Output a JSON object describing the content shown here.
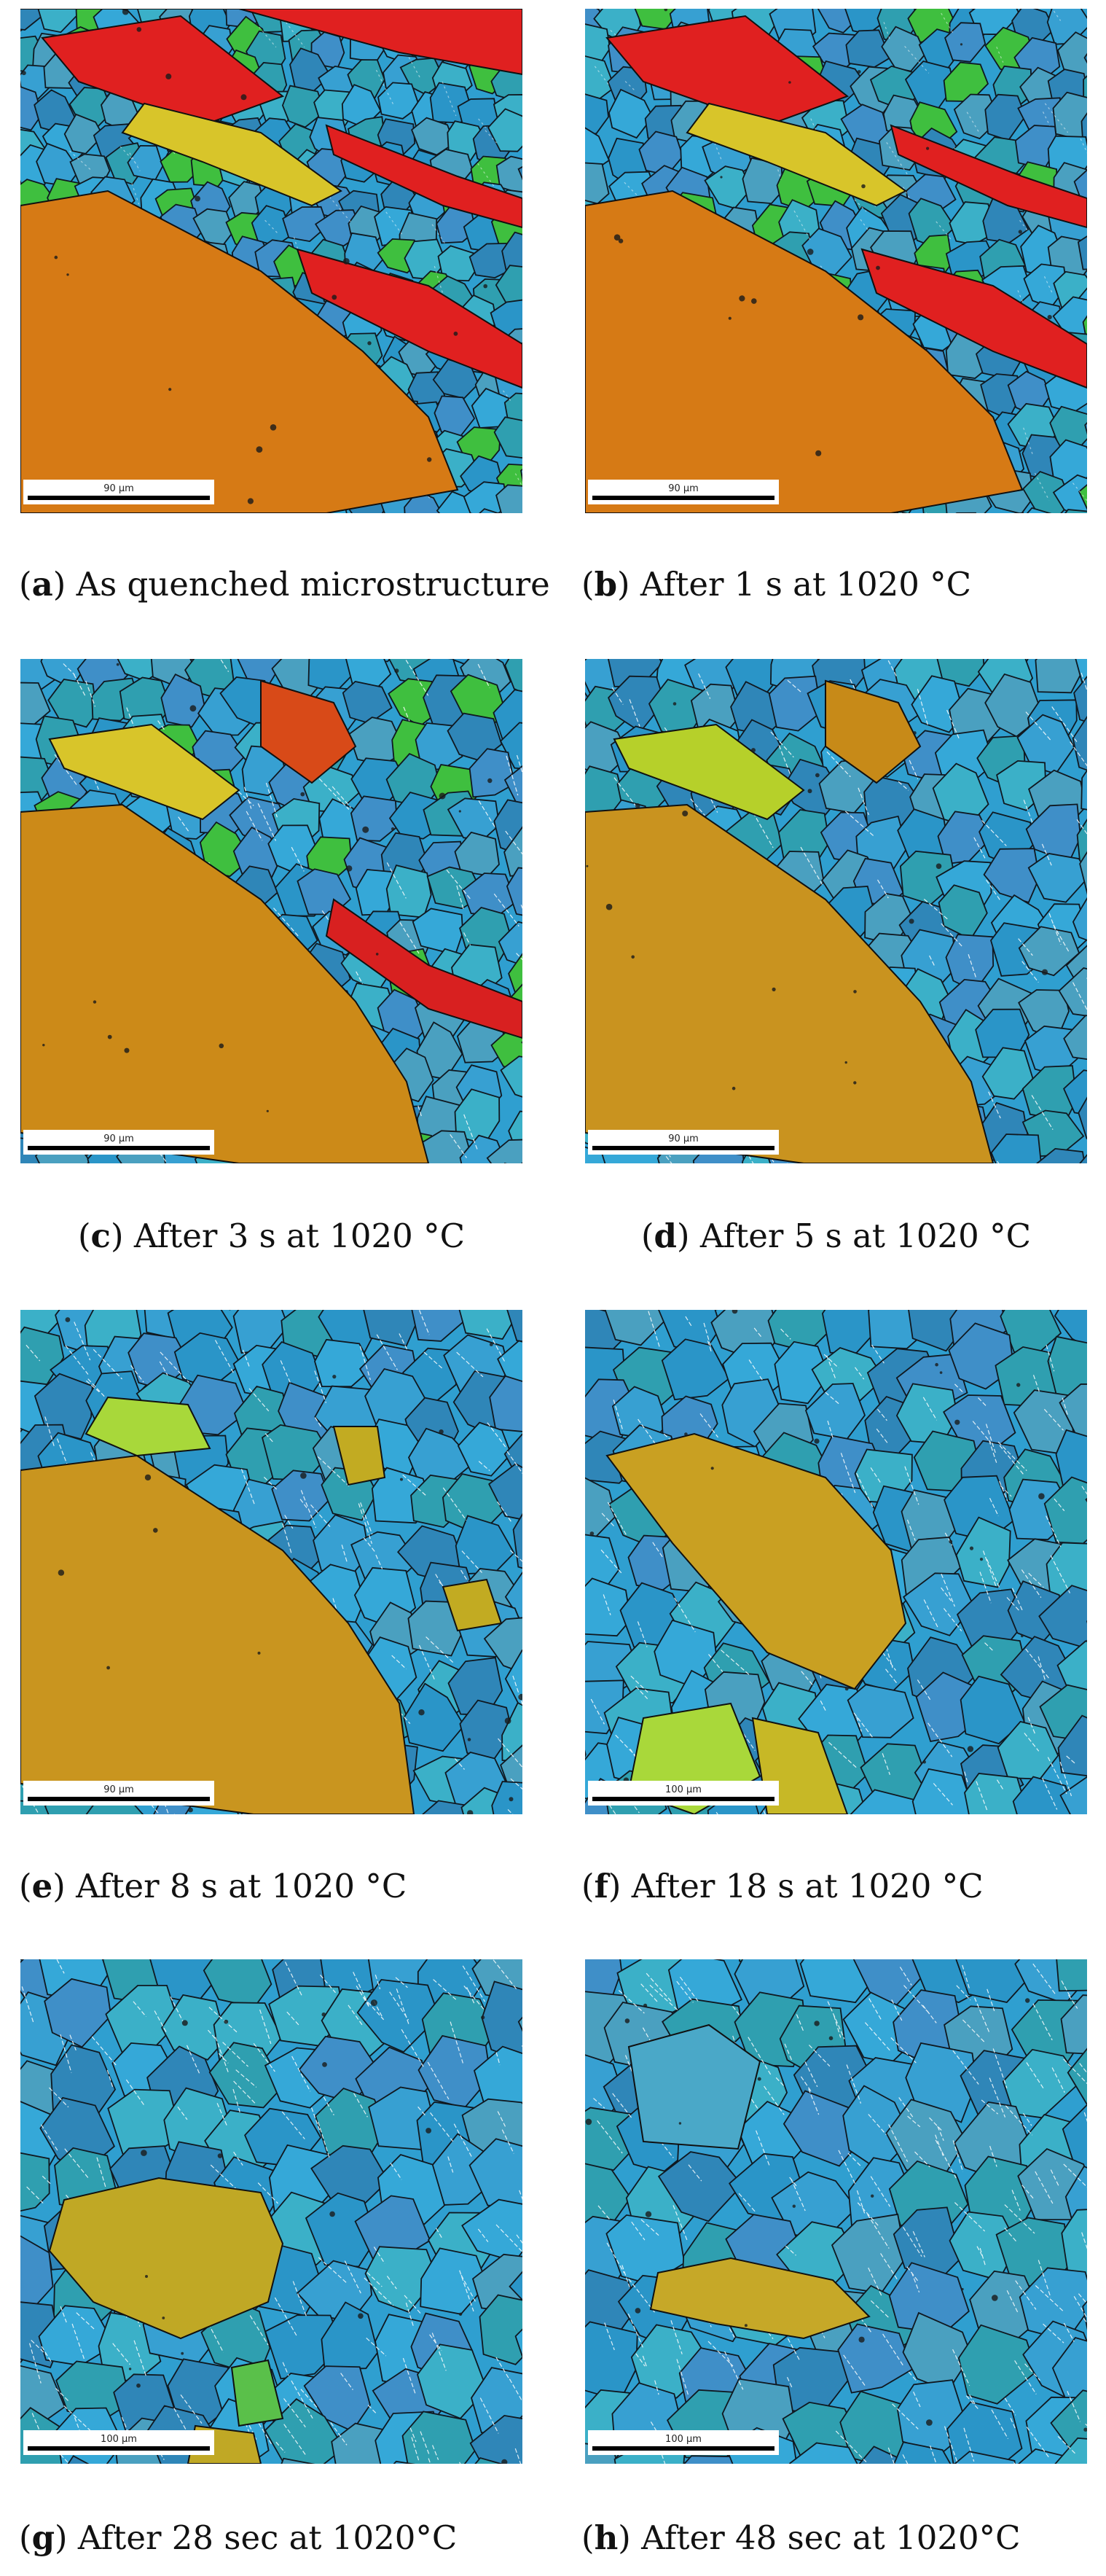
{
  "figure": {
    "panels": [
      {
        "id": "a",
        "letter": "a",
        "caption": "As quenched microstructure",
        "scalebar": "90 µm",
        "colors": {
          "base": "#2f9fd0",
          "big": "#d67a15",
          "mid": "#e02020",
          "accent": "#d8c52a"
        }
      },
      {
        "id": "b",
        "letter": "b",
        "caption": "After 1 s at 1020 °C",
        "scalebar": "90 µm",
        "colors": {
          "base": "#2f9fd0",
          "big": "#d67a15",
          "mid": "#e02020",
          "accent": "#d8c52a"
        }
      },
      {
        "id": "c",
        "letter": "c",
        "caption": "After 3 s at 1020 °C",
        "scalebar": "90 µm",
        "colors": {
          "base": "#2f9fd0",
          "big": "#cc8a18",
          "mid": "#d84a18",
          "accent": "#d8c52a"
        }
      },
      {
        "id": "d",
        "letter": "d",
        "caption": "After 5 s at 1020 °C",
        "scalebar": "90 µm",
        "colors": {
          "base": "#2f9fd0",
          "big": "#c9931f",
          "mid": "#c78a18",
          "accent": "#b6d02a"
        }
      },
      {
        "id": "e",
        "letter": "e",
        "caption": "After 8 s at 1020 °C",
        "scalebar": "90 µm",
        "colors": {
          "base": "#2f9fd0",
          "big": "#c9951f",
          "mid": "#c2ab22",
          "accent": "#a8d83a"
        }
      },
      {
        "id": "f",
        "letter": "f",
        "caption": "After 18 s at 1020 °C",
        "scalebar": "100 µm",
        "colors": {
          "base": "#2f9fd0",
          "big": "#c9a022",
          "mid": "#a9d83a",
          "accent": "#c7b826"
        }
      },
      {
        "id": "g",
        "letter": "g",
        "caption": "After 28 sec at 1020°C",
        "scalebar": "100 µm",
        "colors": {
          "base": "#2f9fd0",
          "big": "#c0a825",
          "mid": "#35b8b0",
          "accent": "#5ac04a"
        }
      },
      {
        "id": "h",
        "letter": "h",
        "caption": "After 48 sec at 1020°C",
        "scalebar": "100 µm",
        "colors": {
          "base": "#2f9fd0",
          "big": "#c6a828",
          "mid": "#35b8b0",
          "accent": "#4aa8c8"
        }
      }
    ]
  }
}
